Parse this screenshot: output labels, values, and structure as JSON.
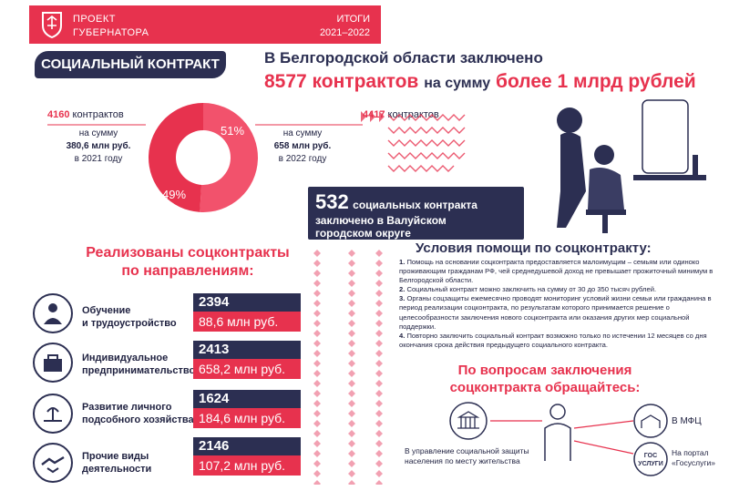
{
  "header": {
    "project_line1": "ПРОЕКТ",
    "project_line2": "ГУБЕРНАТОРА",
    "results_line1": "ИТОГИ",
    "results_line2": "2021–2022"
  },
  "badge": "СОЦИАЛЬНЫЙ КОНТРАКТ",
  "headline": {
    "line1": "В Белгородской области заключено",
    "count": "8577 контрактов",
    "middle": "на сумму",
    "sum": "более 1 млрд рублей"
  },
  "donut": {
    "slice_2022_label": "51%",
    "slice_2021_label": "49%",
    "slice_2022_percent": 51,
    "slice_2021_percent": 49
  },
  "year2021": {
    "count": "4160",
    "count_unit": "контрактов",
    "sum_prefix": "на сумму",
    "sum": "380,6 млн руб.",
    "year": "в 2021 году"
  },
  "year2022": {
    "count": "4417",
    "count_unit": "контрактов",
    "sum_prefix": "на сумму",
    "sum": "658 млн руб.",
    "year": "в 2022 году"
  },
  "valuiki": {
    "number": "532",
    "text1": "социальных контракта",
    "text2": "заключено в Валуйском",
    "text3": "городском округе"
  },
  "directions": {
    "title1": "Реализованы соцконтракты",
    "title2": "по направлениям:",
    "items": [
      {
        "label1": "Обучение",
        "label2": "и трудоустройство",
        "count": "2394",
        "sum": "88,6 млн руб."
      },
      {
        "label1": "Индивидуальное",
        "label2": "предпринимательство",
        "count": "2413",
        "sum": "658,2 млн руб."
      },
      {
        "label1": "Развитие личного",
        "label2": "подсобного хозяйства",
        "count": "1624",
        "sum": "184,6 млн руб."
      },
      {
        "label1": "Прочие виды",
        "label2": "деятельности",
        "count": "2146",
        "sum": "107,2 млн руб."
      }
    ]
  },
  "conditions": {
    "title": "Условия помощи по соцконтракту:",
    "p1_num": "1.",
    "p1": "Помощь на основании соцконтракта предоставляется малоимущим – семьям или одиноко проживающим гражданам РФ, чей среднедушевой доход не превышает прожиточный минимум в Белгородской области.",
    "p2_num": "2.",
    "p2": "Социальный контракт можно заключить на сумму от 30 до 350 тысяч рублей.",
    "p3_num": "3.",
    "p3": "Органы соцзащиты ежемесячно проводят мониторинг условий жизни семьи или гражданина в период реализации соцконтракта, по результатам которого принимается решение о целесообразности заключения нового соцконтракта или оказания других мер социальной поддержки.",
    "p4_num": "4.",
    "p4": "Повторно заключить социальный контракт возможно только по истечении 12 месяцев со дня окончания срока действия предыдущего социального контракта."
  },
  "contacts": {
    "title1": "По вопросам заключения",
    "title2": "соцконтракта обращайтесь:",
    "office": "В управление социальной защиты населения по месту жительства",
    "mfc": "В МФЦ",
    "gosuslugi_line1": "На портал",
    "gosuslugi_line2": "«Госуслуги»",
    "gos_logo_line1": "ГОС",
    "gos_logo_line2": "УСЛУГИ"
  },
  "colors": {
    "red": "#e7324e",
    "navy": "#2c2f52",
    "pink": "#f08aa0"
  }
}
